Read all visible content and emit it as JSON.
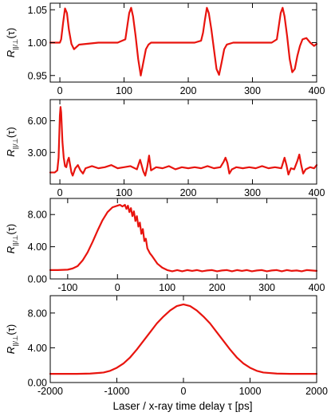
{
  "figure": {
    "curve_color": "#e8140e",
    "xlabel": "Laser / x-ray time delay τ [ps]"
  },
  "chart_data": [
    {
      "type": "line",
      "ylabel": {
        "main": "R",
        "sub": "||/⊥",
        "arg": "(τ)"
      },
      "xlim": [
        -15,
        400
      ],
      "ylim": [
        0.94,
        1.06
      ],
      "x_ticks": [
        0,
        100,
        200,
        300,
        400
      ],
      "x_tick_labels": [
        "0",
        "100",
        "200",
        "300",
        "400"
      ],
      "y_ticks": [
        0.95,
        1.0,
        1.05
      ],
      "y_tick_labels": [
        "0.95",
        "1.00",
        "1.05"
      ],
      "series": [
        {
          "x": [
            -15,
            0,
            2,
            5,
            8,
            11,
            14,
            18,
            22,
            30,
            60,
            90,
            102,
            105,
            108,
            111,
            114,
            118,
            122,
            126,
            130,
            134,
            138,
            142,
            150,
            180,
            210,
            220,
            223,
            226,
            229,
            232,
            236,
            240,
            244,
            248,
            252,
            256,
            260,
            270,
            300,
            330,
            338,
            341,
            344,
            347,
            350,
            354,
            358,
            362,
            366,
            370,
            374,
            378,
            384,
            390,
            396,
            400
          ],
          "y": [
            1.0,
            1.0,
            1.005,
            1.03,
            1.052,
            1.045,
            1.02,
            0.998,
            0.99,
            0.997,
            1.0,
            1.0,
            1.005,
            1.025,
            1.045,
            1.053,
            1.04,
            1.01,
            0.975,
            0.95,
            0.97,
            0.99,
            0.997,
            1.0,
            1.0,
            1.0,
            1.0,
            1.003,
            1.015,
            1.035,
            1.053,
            1.045,
            1.02,
            0.99,
            0.96,
            0.951,
            0.97,
            0.99,
            0.997,
            1.0,
            1.0,
            1.0,
            1.005,
            1.025,
            1.045,
            1.053,
            1.04,
            1.01,
            0.975,
            0.955,
            0.96,
            0.98,
            0.995,
            1.005,
            1.007,
            1.0,
            0.995,
            0.998
          ]
        }
      ]
    },
    {
      "type": "line",
      "ylabel": {
        "main": "R",
        "sub": "||/⊥",
        "arg": "(τ)"
      },
      "xlim": [
        -15,
        400
      ],
      "ylim": [
        0.0,
        8.0
      ],
      "x_ticks": [
        0,
        100,
        200,
        300,
        400
      ],
      "x_tick_labels": [
        "0",
        "100",
        "200",
        "300",
        "400"
      ],
      "y_ticks": [
        3.0,
        6.0
      ],
      "y_tick_labels": [
        "3.00",
        "6.00"
      ],
      "series": [
        {
          "x": [
            -15,
            -8,
            -4,
            -2,
            0,
            1,
            2,
            4,
            6,
            8,
            10,
            12,
            14,
            16,
            18,
            20,
            24,
            28,
            32,
            36,
            40,
            50,
            60,
            70,
            80,
            90,
            100,
            110,
            120,
            125,
            130,
            133,
            136,
            139,
            142,
            150,
            160,
            170,
            180,
            190,
            200,
            210,
            220,
            230,
            240,
            250,
            255,
            258,
            261,
            264,
            268,
            275,
            285,
            295,
            305,
            315,
            325,
            335,
            345,
            350,
            353,
            356,
            360,
            365,
            370,
            373,
            376,
            379,
            383,
            390,
            396,
            400
          ],
          "y": [
            1.1,
            1.1,
            1.3,
            2.5,
            6.5,
            7.3,
            6.8,
            4.0,
            2.5,
            1.7,
            1.6,
            2.2,
            2.5,
            1.8,
            1.1,
            0.8,
            1.5,
            1.8,
            1.3,
            1.0,
            1.5,
            1.7,
            1.5,
            1.6,
            1.8,
            1.5,
            1.6,
            1.7,
            1.4,
            2.3,
            1.2,
            0.8,
            1.6,
            2.7,
            1.3,
            1.6,
            1.5,
            1.7,
            1.4,
            1.6,
            1.5,
            1.6,
            1.5,
            1.7,
            1.5,
            1.6,
            2.1,
            2.5,
            2.0,
            1.0,
            1.4,
            1.6,
            1.5,
            1.6,
            1.5,
            1.7,
            1.5,
            1.6,
            1.5,
            2.5,
            1.8,
            0.9,
            1.5,
            1.4,
            2.2,
            2.8,
            1.8,
            1.0,
            1.4,
            1.6,
            1.5,
            1.8
          ]
        }
      ]
    },
    {
      "type": "line",
      "ylabel": {
        "main": "R",
        "sub": "||/⊥",
        "arg": "(τ)"
      },
      "xlim": [
        -135,
        400
      ],
      "ylim": [
        0.0,
        10.0
      ],
      "x_ticks": [
        -100,
        0,
        100,
        200,
        300,
        400
      ],
      "x_tick_labels": [
        "-100",
        "0",
        "100",
        "200",
        "300",
        "400"
      ],
      "y_ticks": [
        0.0,
        4.0,
        8.0
      ],
      "y_tick_labels": [
        "0.00",
        "4.00",
        "8.00"
      ],
      "series": [
        {
          "x": [
            -135,
            -120,
            -100,
            -90,
            -80,
            -70,
            -60,
            -50,
            -40,
            -30,
            -20,
            -10,
            0,
            5,
            10,
            15,
            18,
            21,
            24,
            27,
            30,
            33,
            36,
            39,
            42,
            45,
            48,
            51,
            54,
            57,
            60,
            65,
            70,
            80,
            90,
            100,
            110,
            120,
            130,
            140,
            150,
            160,
            170,
            180,
            190,
            200,
            210,
            220,
            230,
            240,
            250,
            260,
            270,
            280,
            290,
            300,
            310,
            320,
            330,
            340,
            350,
            360,
            370,
            380,
            390,
            400
          ],
          "y": [
            1.1,
            1.1,
            1.15,
            1.3,
            1.6,
            2.3,
            3.3,
            4.6,
            6.0,
            7.3,
            8.3,
            8.9,
            9.1,
            9.2,
            9.0,
            9.2,
            8.7,
            9.1,
            8.3,
            8.8,
            7.8,
            8.4,
            7.2,
            7.8,
            6.5,
            7.0,
            5.6,
            6.2,
            4.7,
            5.0,
            3.8,
            3.2,
            2.8,
            1.9,
            1.4,
            1.1,
            0.95,
            1.1,
            0.95,
            1.1,
            1.0,
            1.1,
            0.95,
            1.05,
            1.1,
            0.95,
            1.05,
            1.1,
            0.95,
            1.1,
            1.0,
            1.1,
            0.95,
            1.05,
            1.1,
            0.95,
            1.05,
            1.1,
            0.95,
            1.1,
            1.0,
            1.05,
            0.95,
            1.1,
            1.05,
            1.0
          ]
        }
      ]
    },
    {
      "type": "line",
      "ylabel": {
        "main": "R",
        "sub": "||/⊥",
        "arg": "(τ)"
      },
      "xlim": [
        -2000,
        2000
      ],
      "ylim": [
        0.0,
        10.0
      ],
      "x_ticks": [
        -2000,
        -1000,
        0,
        1000,
        2000
      ],
      "x_tick_labels": [
        "-2000",
        "-1000",
        "0",
        "1000",
        "2000"
      ],
      "y_ticks": [
        0.0,
        4.0,
        8.0
      ],
      "y_tick_labels": [
        "0.00",
        "4.00",
        "8.00"
      ],
      "series": [
        {
          "x": [
            -2000,
            -1800,
            -1600,
            -1400,
            -1200,
            -1100,
            -1000,
            -900,
            -800,
            -700,
            -600,
            -500,
            -400,
            -300,
            -200,
            -100,
            0,
            100,
            200,
            300,
            400,
            500,
            600,
            700,
            800,
            900,
            1000,
            1100,
            1200,
            1400,
            1600,
            1800,
            2000
          ],
          "y": [
            1.0,
            1.0,
            1.0,
            1.03,
            1.15,
            1.35,
            1.7,
            2.2,
            2.9,
            3.8,
            4.8,
            5.8,
            6.8,
            7.6,
            8.3,
            8.8,
            9.0,
            8.8,
            8.3,
            7.6,
            6.8,
            5.8,
            4.8,
            3.8,
            2.9,
            2.2,
            1.7,
            1.35,
            1.15,
            1.03,
            1.0,
            1.0,
            1.0
          ]
        }
      ]
    }
  ]
}
